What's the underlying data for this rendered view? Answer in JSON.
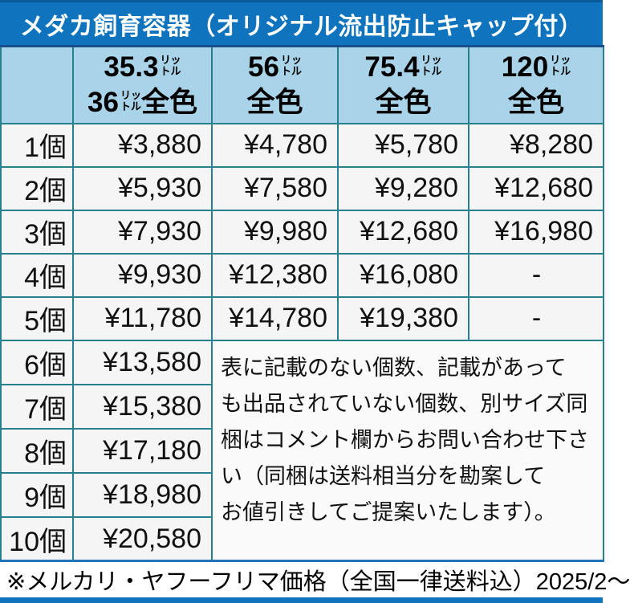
{
  "title": "メダカ飼育容器（オリジナル流出防止キャップ付）",
  "header_columns": [
    {
      "line1_value": "35.3",
      "unit_top": "リッ",
      "unit_bottom": "トル",
      "line2_value": "36",
      "line2_suffix": "全色"
    },
    {
      "line1_value": "56",
      "unit_top": "リッ",
      "unit_bottom": "トル",
      "line2_suffix": "全色"
    },
    {
      "line1_value": "75.4",
      "unit_top": "リッ",
      "unit_bottom": "トル",
      "line2_suffix": "全色"
    },
    {
      "line1_value": "120",
      "unit_top": "リッ",
      "unit_bottom": "トル",
      "line2_suffix": "全色"
    }
  ],
  "rows": [
    {
      "label": "1個",
      "prices": [
        "¥3,880",
        "¥4,780",
        "¥5,780",
        "¥8,280"
      ]
    },
    {
      "label": "2個",
      "prices": [
        "¥5,930",
        "¥7,580",
        "¥9,280",
        "¥12,680"
      ]
    },
    {
      "label": "3個",
      "prices": [
        "¥7,930",
        "¥9,980",
        "¥12,680",
        "¥16,980"
      ]
    },
    {
      "label": "4個",
      "prices": [
        "¥9,930",
        "¥12,380",
        "¥16,080",
        "-"
      ]
    },
    {
      "label": "5個",
      "prices": [
        "¥11,780",
        "¥14,780",
        "¥19,380",
        "-"
      ]
    },
    {
      "label": "6個",
      "prices": [
        "¥13,580"
      ]
    },
    {
      "label": "7個",
      "prices": [
        "¥15,380"
      ]
    },
    {
      "label": "8個",
      "prices": [
        "¥17,180"
      ]
    },
    {
      "label": "9個",
      "prices": [
        "¥18,980"
      ]
    },
    {
      "label": "10個",
      "prices": [
        "¥20,580"
      ]
    }
  ],
  "note": "表に記載のない個数、記載があって\nも出品されていない個数、別サイズ同\n梱はコメント欄からお問い合わせ下さ\nい（同梱は送料相当分を勘案して\nお値引きしてご提案いたします）。",
  "footer": "※メルカリ・ヤフーフリマ価格（全国一律送料込）2025/2～",
  "colors": {
    "title_bg": "#0F74BD",
    "title_text": "#FFFFFF",
    "top_line": "#0A5C99",
    "header_bg": "#A8D3E8",
    "border_teal": "#26808E",
    "frame_navy": "#174F8C",
    "bottom_outer": "#2273B8",
    "cell_bg": "#F5F5F5",
    "note_bg": "#FAFAFA",
    "accent_blue": "#0F74BD"
  }
}
